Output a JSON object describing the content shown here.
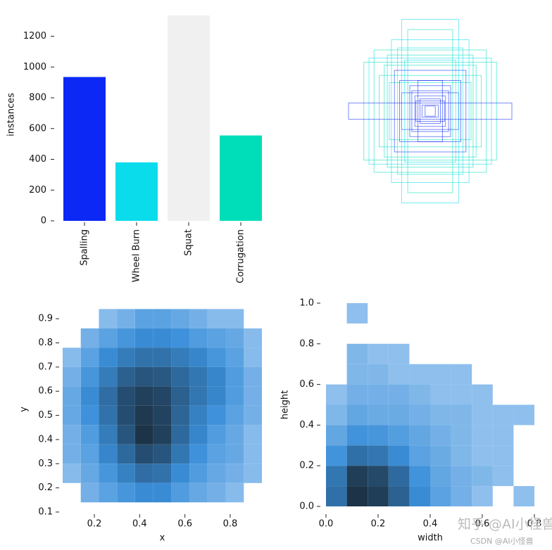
{
  "chart_data": [
    {
      "type": "bar",
      "ylabel": "instances",
      "categories": [
        "Spalling",
        "Wheel Burn",
        "Squat",
        "Corrugation"
      ],
      "values": [
        935,
        380,
        1335,
        555
      ],
      "colors": [
        "#0b28f5",
        "#0bdcec",
        "#f0f0f0",
        "#00deb9"
      ],
      "ylim": [
        0,
        1335
      ],
      "yticks": [
        0,
        200,
        400,
        600,
        800,
        1000,
        1200
      ]
    },
    {
      "type": "boxes",
      "colors": [
        "#0b28f5",
        "#0bdcec",
        "#f0f0f0",
        "#00deb9"
      ],
      "widths": [
        0.8,
        0.28,
        0.45,
        0.55,
        0.38,
        0.5,
        0.3,
        0.2,
        0.15,
        0.1,
        0.08,
        0.22,
        0.6,
        0.42,
        0.35,
        0.25,
        0.12,
        0.05,
        0.18,
        0.28,
        0.4,
        0.65,
        0.32,
        0.14
      ],
      "heights": [
        0.08,
        0.9,
        0.45,
        0.6,
        0.7,
        0.35,
        0.3,
        0.25,
        0.15,
        0.12,
        0.06,
        0.8,
        0.52,
        0.55,
        0.4,
        0.5,
        0.3,
        0.05,
        0.2,
        0.18,
        0.28,
        0.48,
        0.62,
        0.1
      ],
      "classes": [
        0,
        1,
        3,
        3,
        1,
        3,
        0,
        0,
        0,
        0,
        0,
        3,
        1,
        3,
        0,
        1,
        0,
        0,
        0,
        0,
        3,
        3,
        1,
        0
      ]
    },
    {
      "type": "hist2d",
      "xlabel": "x",
      "ylabel": "y",
      "xbins": [
        0.06,
        0.14,
        0.22,
        0.3,
        0.38,
        0.46,
        0.54,
        0.62,
        0.7,
        0.78,
        0.86,
        0.94
      ],
      "ybins": [
        0.14,
        0.22,
        0.3,
        0.38,
        0.46,
        0.54,
        0.62,
        0.7,
        0.78,
        0.86,
        0.94
      ],
      "counts": [
        [
          0,
          2,
          4,
          6,
          8,
          8,
          5,
          3,
          2,
          1,
          0
        ],
        [
          1,
          3,
          6,
          10,
          14,
          13,
          8,
          5,
          3,
          2,
          1
        ],
        [
          2,
          4,
          9,
          15,
          22,
          20,
          12,
          7,
          4,
          3,
          1
        ],
        [
          2,
          5,
          11,
          20,
          30,
          26,
          15,
          9,
          5,
          3,
          1
        ],
        [
          3,
          7,
          13,
          22,
          28,
          25,
          16,
          10,
          7,
          4,
          2
        ],
        [
          3,
          8,
          14,
          22,
          26,
          24,
          17,
          12,
          9,
          5,
          2
        ],
        [
          2,
          6,
          11,
          17,
          20,
          19,
          15,
          12,
          9,
          5,
          2
        ],
        [
          1,
          4,
          8,
          11,
          13,
          13,
          11,
          9,
          6,
          4,
          1
        ],
        [
          0,
          2,
          4,
          6,
          8,
          8,
          7,
          5,
          4,
          3,
          1
        ],
        [
          0,
          0,
          1,
          2,
          4,
          4,
          3,
          2,
          1,
          1,
          0
        ]
      ],
      "xlim": [
        0.06,
        0.94
      ],
      "ylim": [
        0.1,
        0.95
      ],
      "xticks": [
        0.2,
        0.4,
        0.6,
        0.8
      ],
      "yticks": [
        0.1,
        0.2,
        0.3,
        0.4,
        0.5,
        0.6,
        0.7,
        0.8,
        0.9
      ]
    },
    {
      "type": "hist2d",
      "xlabel": "width",
      "ylabel": "height",
      "xbins": [
        0,
        0.08,
        0.16,
        0.24,
        0.32,
        0.4,
        0.48,
        0.56,
        0.64,
        0.72,
        0.8
      ],
      "ybins": [
        0,
        0.1,
        0.2,
        0.3,
        0.4,
        0.5,
        0.6,
        0.7,
        0.8,
        0.9,
        1.0
      ],
      "counts": [
        [
          20,
          45,
          40,
          25,
          12,
          6,
          3,
          1,
          0,
          1
        ],
        [
          18,
          40,
          35,
          22,
          10,
          5,
          3,
          2,
          1,
          0
        ],
        [
          10,
          20,
          18,
          12,
          6,
          4,
          2,
          1,
          1,
          0
        ],
        [
          5,
          10,
          9,
          7,
          5,
          3,
          2,
          1,
          1,
          0
        ],
        [
          2,
          5,
          4,
          4,
          3,
          2,
          2,
          1,
          1,
          1
        ],
        [
          1,
          3,
          3,
          3,
          2,
          1,
          1,
          1,
          0,
          0
        ],
        [
          0,
          2,
          2,
          1,
          1,
          1,
          1,
          0,
          0,
          0
        ],
        [
          0,
          2,
          1,
          1,
          0,
          0,
          0,
          0,
          0,
          0
        ],
        [
          0,
          0,
          0,
          0,
          0,
          0,
          0,
          0,
          0,
          0
        ],
        [
          0,
          1,
          0,
          0,
          0,
          0,
          0,
          0,
          0,
          0
        ]
      ],
      "xlim": [
        0,
        0.8
      ],
      "ylim": [
        0,
        1.0
      ],
      "xticks": [
        {
          "value": 0,
          "label": "0.0"
        },
        0.2,
        0.4,
        0.6,
        0.8
      ],
      "yticks": [
        {
          "value": 0,
          "label": "0.0"
        },
        0.2,
        0.4,
        0.6,
        0.8,
        {
          "value": 1.0,
          "label": "1.0"
        }
      ]
    }
  ],
  "watermarks": [
    "知乎 @AI小怪兽",
    "CSDN @AI小怪兽"
  ]
}
